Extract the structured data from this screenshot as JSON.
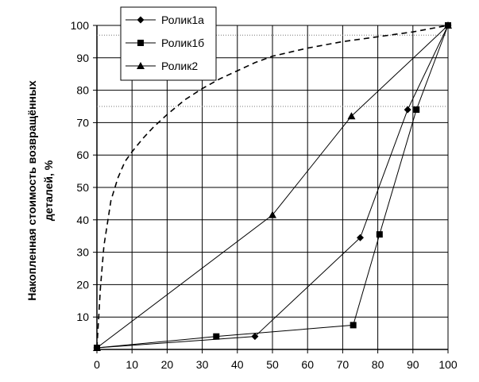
{
  "chart_data": {
    "type": "line",
    "title": "",
    "xlabel": "",
    "ylabel_lines": [
      "Накопленная стоимость возвращённых",
      "деталей, %"
    ],
    "xlim": [
      0,
      100
    ],
    "ylim": [
      0,
      100
    ],
    "x_ticks": [
      0,
      10,
      20,
      30,
      40,
      50,
      60,
      70,
      80,
      90,
      100
    ],
    "y_ticks": [
      10,
      20,
      30,
      40,
      50,
      60,
      70,
      80,
      90,
      100
    ],
    "grid": true,
    "legend_position": "top-left",
    "series": [
      {
        "name": "Ролик1а",
        "marker": "diamond",
        "color": "#000000",
        "x": [
          0,
          45,
          75,
          88.5,
          100
        ],
        "y": [
          0.5,
          4,
          34.5,
          74,
          100
        ]
      },
      {
        "name": "Ролик1б",
        "marker": "square",
        "color": "#000000",
        "x": [
          0,
          34,
          73,
          80.5,
          91,
          100
        ],
        "y": [
          0.5,
          4,
          7.5,
          35.5,
          74,
          100
        ]
      },
      {
        "name": "Ролик2",
        "marker": "triangle",
        "color": "#000000",
        "x": [
          0,
          50,
          72.5,
          100
        ],
        "y": [
          0.5,
          41.5,
          72,
          100
        ]
      }
    ],
    "reference_curve": {
      "style": "dashed",
      "x": [
        0,
        1,
        2,
        4,
        6,
        8,
        10,
        13,
        16,
        20,
        25,
        30,
        35,
        40,
        45,
        50,
        60,
        70,
        80,
        90,
        100
      ],
      "y": [
        0.5,
        19,
        32,
        46,
        53,
        58,
        61,
        65,
        68.5,
        72.5,
        77,
        80.5,
        83.5,
        86,
        88.5,
        90.5,
        93,
        95,
        96.5,
        98,
        100
      ]
    },
    "reference_lines_y": [
      97,
      75
    ]
  }
}
